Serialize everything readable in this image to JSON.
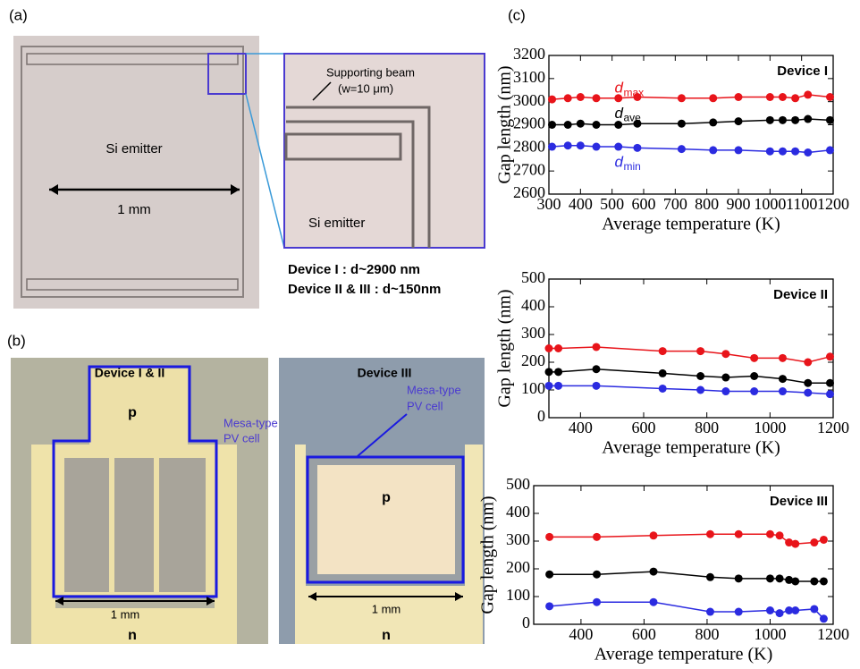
{
  "panel_a": {
    "label": "(a)",
    "emitter_label": "Si emitter",
    "scale": "1 mm",
    "inset_beam": "Supporting beam",
    "inset_width": "(w=10 μm)",
    "inset_emitter": "Si emitter",
    "device_lines": [
      "Device I : d~2900 nm",
      "Device II & III : d~150nm"
    ]
  },
  "panel_b": {
    "label": "(b)",
    "left": {
      "title": "Device I & II",
      "cell": [
        "Mesa-type",
        "PV cell"
      ],
      "p": "p",
      "n": "n",
      "scale": "1 mm"
    },
    "right": {
      "title": "Device III",
      "cell": [
        "Mesa-type",
        "PV cell"
      ],
      "p": "p",
      "n": "n",
      "scale": "1 mm"
    }
  },
  "panel_c": {
    "label": "(c)"
  },
  "chart_data": [
    {
      "type": "line",
      "title": "Device I",
      "xlabel": "Average temperature (K)",
      "ylabel": "Gap length (nm)",
      "symbol": "d",
      "x": [
        310,
        360,
        400,
        450,
        520,
        580,
        720,
        820,
        900,
        1000,
        1040,
        1080,
        1120,
        1190
      ],
      "series": [
        {
          "name": "max",
          "color": "#e8141a",
          "values": [
            3010,
            3015,
            3020,
            3015,
            3015,
            3020,
            3015,
            3015,
            3020,
            3020,
            3020,
            3015,
            3030,
            3020
          ]
        },
        {
          "name": "ave",
          "color": "#000000",
          "values": [
            2900,
            2900,
            2905,
            2900,
            2900,
            2905,
            2905,
            2910,
            2915,
            2920,
            2920,
            2920,
            2925,
            2920
          ]
        },
        {
          "name": "min",
          "color": "#2b2be0",
          "values": [
            2805,
            2810,
            2810,
            2805,
            2805,
            2800,
            2795,
            2790,
            2790,
            2785,
            2785,
            2785,
            2780,
            2790
          ]
        }
      ],
      "xlim": [
        300,
        1200
      ],
      "xticks": [
        300,
        400,
        500,
        600,
        700,
        800,
        900,
        1000,
        1100,
        1200
      ],
      "ylim": [
        2600,
        3200
      ],
      "yticks": [
        2600,
        2700,
        2800,
        2900,
        3000,
        3100,
        3200
      ]
    },
    {
      "type": "line",
      "title": "Device II",
      "xlabel": "Average temperature (K)",
      "ylabel": "Gap length (nm)",
      "x": [
        300,
        330,
        450,
        660,
        780,
        860,
        950,
        1040,
        1120,
        1190
      ],
      "series": [
        {
          "color": "#e8141a",
          "values": [
            250,
            250,
            255,
            240,
            240,
            230,
            215,
            215,
            200,
            220
          ]
        },
        {
          "color": "#000000",
          "values": [
            165,
            165,
            175,
            160,
            150,
            145,
            150,
            140,
            125,
            125
          ]
        },
        {
          "color": "#2b2be0",
          "values": [
            115,
            115,
            115,
            105,
            100,
            95,
            95,
            95,
            90,
            85
          ]
        }
      ],
      "xlim": [
        300,
        1200
      ],
      "xticks": [
        400,
        600,
        800,
        1000,
        1200
      ],
      "ylim": [
        0,
        500
      ],
      "yticks": [
        0,
        100,
        200,
        300,
        400,
        500
      ]
    },
    {
      "type": "line",
      "title": "Device III",
      "xlabel": "Average temperature (K)",
      "ylabel": "Gap length (nm)",
      "x": [
        300,
        450,
        630,
        810,
        900,
        1000,
        1030,
        1060,
        1080,
        1140,
        1170
      ],
      "series": [
        {
          "color": "#e8141a",
          "values": [
            315,
            315,
            320,
            325,
            325,
            325,
            320,
            295,
            290,
            295,
            305
          ]
        },
        {
          "color": "#000000",
          "values": [
            180,
            180,
            190,
            170,
            165,
            165,
            165,
            160,
            155,
            155,
            155
          ]
        },
        {
          "color": "#2b2be0",
          "values": [
            65,
            80,
            80,
            45,
            45,
            50,
            40,
            50,
            50,
            55,
            20
          ]
        }
      ],
      "xlim": [
        250,
        1200
      ],
      "xticks": [
        400,
        600,
        800,
        1000,
        1200
      ],
      "ylim": [
        0,
        500
      ],
      "yticks": [
        0,
        100,
        200,
        300,
        400,
        500
      ]
    }
  ]
}
